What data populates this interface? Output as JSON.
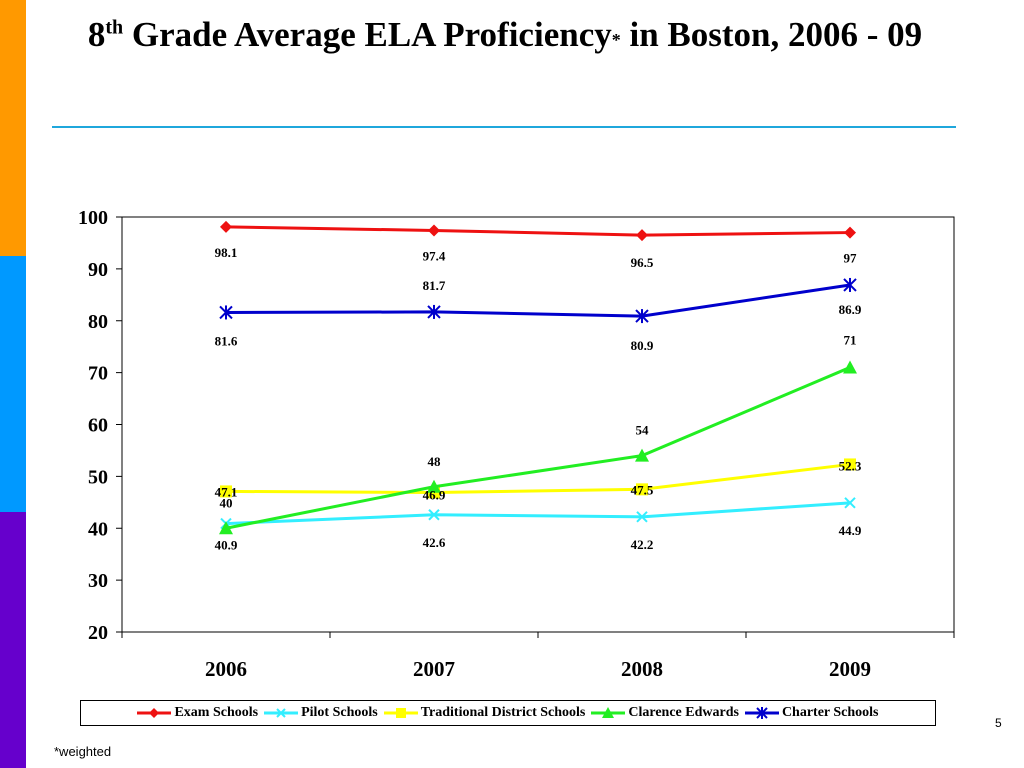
{
  "slide": {
    "title_part1": "8",
    "title_sup": "th",
    "title_part2": " Grade Average ELA Proficiency",
    "title_asterisk": "*",
    "title_part3": " in Boston, 2006 - 09",
    "page_number": "5",
    "footnote": "*weighted",
    "side_colors": [
      "#ff9900",
      "#0099ff",
      "#6600cc"
    ],
    "rule_color": "#1fa7dc"
  },
  "chart_data": {
    "type": "line",
    "title": "",
    "xlabel": "",
    "ylabel": "",
    "categories": [
      "2006",
      "2007",
      "2008",
      "2009"
    ],
    "ylim": [
      20,
      100
    ],
    "yticks": [
      20,
      30,
      40,
      50,
      60,
      70,
      80,
      90,
      100
    ],
    "grid": false,
    "legend_position": "bottom",
    "series": [
      {
        "name": "Exam Schools",
        "color": "#ee1111",
        "marker": "diamond",
        "values": [
          98.1,
          97.4,
          96.5,
          97
        ],
        "labels": [
          "98.1",
          "97.4",
          "96.5",
          "97"
        ]
      },
      {
        "name": "Pilot Schools",
        "color": "#33eeff",
        "marker": "x",
        "values": [
          40.9,
          42.6,
          42.2,
          44.9
        ],
        "labels": [
          "40.9",
          "42.6",
          "42.2",
          "44.9"
        ]
      },
      {
        "name": "Traditional District Schools",
        "color": "#ffff00",
        "marker": "square",
        "values": [
          47.1,
          46.9,
          47.5,
          52.3
        ],
        "labels": [
          "47.1",
          "46.9",
          "47.5",
          "52.3"
        ]
      },
      {
        "name": "Clarence Edwards",
        "color": "#22ee22",
        "marker": "triangle",
        "values": [
          40,
          48,
          54,
          71
        ],
        "labels": [
          "40",
          "48",
          "54",
          "71"
        ]
      },
      {
        "name": "Charter Schools",
        "color": "#0000cc",
        "marker": "asterisk",
        "values": [
          81.6,
          81.7,
          80.9,
          86.9
        ],
        "labels": [
          "81.6",
          "81.7",
          "80.9",
          "86.9"
        ]
      }
    ]
  }
}
